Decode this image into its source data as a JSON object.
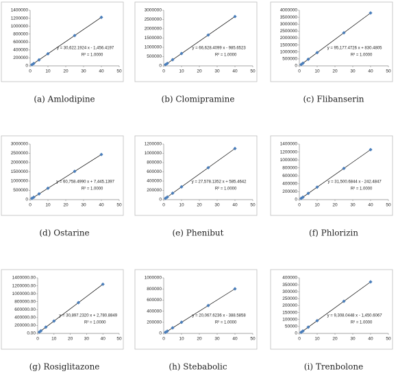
{
  "chart_data": [
    {
      "type": "scatter",
      "caption": "(a) Amlodipine",
      "equation": "y = 30,622.1924 x - 1,456.4197",
      "r_squared": "R² = 1.0000",
      "color": "#4a7ebb",
      "grid": false,
      "x": [
        1,
        2,
        5,
        10,
        25,
        40
      ],
      "values": [
        29166,
        59788,
        151655,
        304766,
        764098,
        1223431
      ],
      "xlim": [
        0,
        50
      ],
      "xticks": [
        0,
        10,
        20,
        30,
        40,
        50
      ],
      "ylim": [
        0,
        1400000
      ],
      "yticks": [
        0,
        200000,
        400000,
        600000,
        800000,
        1000000,
        1200000,
        1400000
      ]
    },
    {
      "type": "scatter",
      "caption": "(b) Clomipramine",
      "equation": "y = 66,628.4099 x - 985.6523",
      "r_squared": "R² = 1.0000",
      "color": "#4a7ebb",
      "grid": false,
      "x": [
        1,
        2,
        5,
        10,
        25,
        40
      ],
      "values": [
        65643,
        132271,
        332156,
        665298,
        1664725,
        2664151
      ],
      "xlim": [
        0,
        50
      ],
      "xticks": [
        0,
        10,
        20,
        30,
        40,
        50
      ],
      "ylim": [
        0,
        3000000
      ],
      "yticks": [
        0,
        500000,
        1000000,
        1500000,
        2000000,
        2500000,
        3000000
      ]
    },
    {
      "type": "scatter",
      "caption": "(c) Flibanserin",
      "equation": "y = 95,177.4726 x + 830.4805",
      "r_squared": "R² = 1.0000",
      "color": "#4a7ebb",
      "grid": false,
      "x": [
        1,
        2,
        5,
        10,
        25,
        40
      ],
      "values": [
        96008,
        191185,
        476718,
        952606,
        2380267,
        3807930
      ],
      "xlim": [
        0,
        50
      ],
      "xticks": [
        0,
        10,
        20,
        30,
        40,
        50
      ],
      "ylim": [
        0,
        4000000
      ],
      "yticks": [
        0,
        500000,
        1000000,
        1500000,
        2000000,
        2500000,
        3000000,
        3500000,
        4000000
      ]
    },
    {
      "type": "scatter",
      "caption": "(d) Ostarine",
      "equation": "y = 60,758.4990 x + 7,445.1397",
      "r_squared": "R² = 1.0000",
      "color": "#4a7ebb",
      "grid": false,
      "x": [
        1,
        2,
        5,
        10,
        25,
        40
      ],
      "values": [
        68204,
        128962,
        311238,
        615030,
        1526408,
        2437785
      ],
      "xlim": [
        0,
        50
      ],
      "xticks": [
        0,
        10,
        20,
        30,
        40,
        50
      ],
      "ylim": [
        0,
        3000000
      ],
      "yticks": [
        0,
        500000,
        1000000,
        1500000,
        2000000,
        2500000,
        3000000
      ]
    },
    {
      "type": "scatter",
      "caption": "(e) Phenibut",
      "equation": "y = 27,578.1352 x + 585.4642",
      "r_squared": "R² = 1.0000",
      "color": "#4a7ebb",
      "grid": false,
      "x": [
        1,
        2,
        5,
        10,
        25,
        40
      ],
      "values": [
        28164,
        55742,
        138476,
        276367,
        690039,
        1103711
      ],
      "xlim": [
        0,
        50
      ],
      "xticks": [
        0,
        10,
        20,
        30,
        40,
        50
      ],
      "ylim": [
        0,
        1200000
      ],
      "yticks": [
        0,
        200000,
        400000,
        600000,
        800000,
        1000000,
        1200000
      ]
    },
    {
      "type": "scatter",
      "caption": "(f) Phlorizin",
      "equation": "y = 31,500.6844 x - 242.4847",
      "r_squared": "R² = 1.0000",
      "color": "#4a7ebb",
      "grid": false,
      "x": [
        1,
        2,
        5,
        10,
        25,
        40
      ],
      "values": [
        31258,
        62759,
        157261,
        314764,
        787275,
        1259785
      ],
      "xlim": [
        0,
        50
      ],
      "xticks": [
        0,
        10,
        20,
        30,
        40,
        50
      ],
      "ylim": [
        0,
        1400000
      ],
      "yticks": [
        0,
        200000,
        400000,
        600000,
        800000,
        1000000,
        1200000,
        1400000
      ]
    },
    {
      "type": "scatter",
      "caption": "(g) Rosiglitazone",
      "equation": "y = 30,897.2320 x + 2,780.8849",
      "r_squared": "R² = 1.0000",
      "color": "#4a7ebb",
      "grid": false,
      "x": [
        1,
        2,
        5,
        10,
        25,
        40
      ],
      "values": [
        33678,
        64575,
        157267,
        311753,
        775212,
        1238670
      ],
      "xlim": [
        0,
        50
      ],
      "xticks": [
        0,
        10,
        20,
        30,
        40,
        50
      ],
      "ylim": [
        0,
        1400000
      ],
      "yticks": [
        {
          "value": 0,
          "label": "0.00"
        },
        {
          "value": 200000,
          "label": "200000.00"
        },
        {
          "value": 400000,
          "label": "400000.00"
        },
        {
          "value": 600000,
          "label": "600000.00"
        },
        {
          "value": 800000,
          "label": "800000.00"
        },
        {
          "value": 1000000,
          "label": "1000000.00"
        },
        {
          "value": 1200000,
          "label": "1200000.00"
        },
        {
          "value": 1400000,
          "label": "1400000.00"
        }
      ]
    },
    {
      "type": "scatter",
      "caption": "(h) Stebabolic",
      "equation": "y = 20,067.6236 x - 388.5858",
      "r_squared": "R² = 1.0000",
      "color": "#4a7ebb",
      "grid": false,
      "x": [
        1,
        2,
        5,
        10,
        25,
        40
      ],
      "values": [
        19679,
        39747,
        99950,
        200288,
        501302,
        802316
      ],
      "xlim": [
        0,
        50
      ],
      "xticks": [
        0,
        10,
        20,
        30,
        40,
        50
      ],
      "ylim": [
        0,
        1000000
      ],
      "yticks": [
        0,
        200000,
        400000,
        600000,
        800000,
        1000000
      ]
    },
    {
      "type": "scatter",
      "caption": "(i) Trenbolone",
      "equation": "y = 9,308.0448 x - 1,450.6067",
      "r_squared": "R² = 1.0000",
      "color": "#4a7ebb",
      "grid": false,
      "x": [
        1,
        2,
        5,
        10,
        25,
        40
      ],
      "values": [
        7857,
        17165,
        45090,
        91630,
        231250,
        370871
      ],
      "xlim": [
        0,
        50
      ],
      "xticks": [
        0,
        10,
        20,
        30,
        40,
        50
      ],
      "ylim": [
        0,
        400000
      ],
      "yticks": [
        0,
        50000,
        100000,
        150000,
        200000,
        250000,
        300000,
        350000,
        400000
      ]
    }
  ]
}
